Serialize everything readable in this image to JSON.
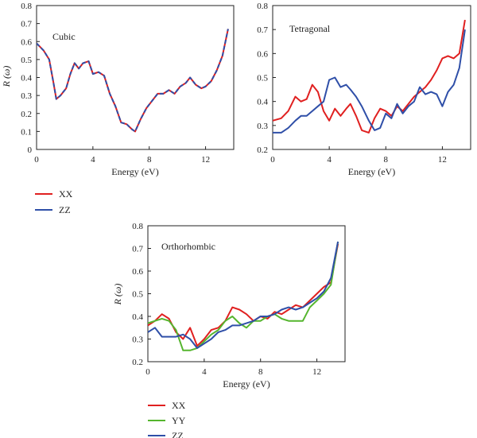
{
  "colors": {
    "XX": "#e02020",
    "YY": "#55b52e",
    "ZZ": "#2f4fa8",
    "axis": "#222222"
  },
  "chart_data": [
    {
      "type": "line",
      "panel_label": "Cubic",
      "xlabel": "Energy (eV)",
      "ylabel": "R (ω)",
      "xlim": [
        0,
        14
      ],
      "ylim": [
        0,
        0.8
      ],
      "xticks": [
        0,
        4,
        8,
        12
      ],
      "yticks": [
        0,
        0.1,
        0.2,
        0.3,
        0.4,
        0.5,
        0.6,
        0.7,
        0.8
      ],
      "legend": [
        "XX",
        "ZZ"
      ],
      "series": [
        {
          "name": "XX",
          "color": "#e02020",
          "dashed": false,
          "x": [
            0,
            0.5,
            0.9,
            1.2,
            1.4,
            1.7,
            2.1,
            2.4,
            2.7,
            3.0,
            3.3,
            3.7,
            4.0,
            4.4,
            4.8,
            5.2,
            5.6,
            6.0,
            6.4,
            6.8,
            7.0,
            7.4,
            7.8,
            8.2,
            8.6,
            9.0,
            9.4,
            9.8,
            10.2,
            10.6,
            10.9,
            11.3,
            11.7,
            12.0,
            12.4,
            12.8,
            13.2,
            13.6
          ],
          "y": [
            0.59,
            0.55,
            0.5,
            0.37,
            0.28,
            0.3,
            0.34,
            0.42,
            0.48,
            0.45,
            0.48,
            0.49,
            0.42,
            0.43,
            0.41,
            0.31,
            0.24,
            0.15,
            0.14,
            0.11,
            0.1,
            0.17,
            0.23,
            0.27,
            0.31,
            0.31,
            0.33,
            0.31,
            0.35,
            0.37,
            0.4,
            0.36,
            0.34,
            0.35,
            0.38,
            0.44,
            0.52,
            0.67
          ]
        },
        {
          "name": "ZZ",
          "color": "#2f4fa8",
          "dashed": true,
          "x": [
            0,
            0.5,
            0.9,
            1.2,
            1.4,
            1.7,
            2.1,
            2.4,
            2.7,
            3.0,
            3.3,
            3.7,
            4.0,
            4.4,
            4.8,
            5.2,
            5.6,
            6.0,
            6.4,
            6.8,
            7.0,
            7.4,
            7.8,
            8.2,
            8.6,
            9.0,
            9.4,
            9.8,
            10.2,
            10.6,
            10.9,
            11.3,
            11.7,
            12.0,
            12.4,
            12.8,
            13.2,
            13.6
          ],
          "y": [
            0.59,
            0.55,
            0.5,
            0.37,
            0.28,
            0.3,
            0.34,
            0.42,
            0.48,
            0.45,
            0.48,
            0.49,
            0.42,
            0.43,
            0.41,
            0.31,
            0.24,
            0.15,
            0.14,
            0.11,
            0.1,
            0.17,
            0.23,
            0.27,
            0.31,
            0.31,
            0.33,
            0.31,
            0.35,
            0.37,
            0.4,
            0.36,
            0.34,
            0.35,
            0.38,
            0.44,
            0.52,
            0.67
          ]
        }
      ]
    },
    {
      "type": "line",
      "panel_label": "Tetragonal",
      "xlabel": "Energy (eV)",
      "ylabel": "",
      "xlim": [
        0,
        14
      ],
      "ylim": [
        0.2,
        0.8
      ],
      "xticks": [
        0,
        4,
        8,
        12
      ],
      "yticks": [
        0.2,
        0.3,
        0.4,
        0.5,
        0.6,
        0.7,
        0.8
      ],
      "legend": [],
      "series": [
        {
          "name": "XX",
          "color": "#e02020",
          "dashed": false,
          "x": [
            0,
            0.6,
            1.1,
            1.6,
            2.0,
            2.4,
            2.8,
            3.2,
            3.6,
            4.0,
            4.4,
            4.8,
            5.2,
            5.5,
            5.9,
            6.3,
            6.8,
            7.2,
            7.6,
            8.0,
            8.4,
            8.8,
            9.2,
            9.6,
            10.0,
            10.4,
            10.8,
            11.2,
            11.6,
            12.0,
            12.4,
            12.8,
            13.2,
            13.6
          ],
          "y": [
            0.32,
            0.33,
            0.36,
            0.42,
            0.4,
            0.41,
            0.47,
            0.44,
            0.36,
            0.32,
            0.37,
            0.34,
            0.37,
            0.39,
            0.34,
            0.28,
            0.27,
            0.33,
            0.37,
            0.36,
            0.34,
            0.38,
            0.36,
            0.39,
            0.42,
            0.44,
            0.46,
            0.49,
            0.53,
            0.58,
            0.59,
            0.58,
            0.6,
            0.74
          ]
        },
        {
          "name": "ZZ",
          "color": "#2f4fa8",
          "dashed": false,
          "x": [
            0,
            0.6,
            1.1,
            1.6,
            2.0,
            2.4,
            2.8,
            3.2,
            3.6,
            4.0,
            4.4,
            4.8,
            5.2,
            5.5,
            5.9,
            6.3,
            6.8,
            7.2,
            7.6,
            8.0,
            8.4,
            8.8,
            9.2,
            9.6,
            10.0,
            10.4,
            10.8,
            11.2,
            11.6,
            12.0,
            12.4,
            12.8,
            13.2,
            13.6
          ],
          "y": [
            0.27,
            0.27,
            0.29,
            0.32,
            0.34,
            0.34,
            0.36,
            0.38,
            0.4,
            0.49,
            0.5,
            0.46,
            0.47,
            0.45,
            0.42,
            0.38,
            0.32,
            0.28,
            0.29,
            0.35,
            0.33,
            0.39,
            0.35,
            0.38,
            0.4,
            0.46,
            0.43,
            0.44,
            0.43,
            0.38,
            0.44,
            0.47,
            0.54,
            0.7
          ]
        }
      ]
    },
    {
      "type": "line",
      "panel_label": "Orthorhombic",
      "xlabel": "Energy (eV)",
      "ylabel": "R (ω)",
      "xlim": [
        0,
        14
      ],
      "ylim": [
        0.2,
        0.8
      ],
      "xticks": [
        0,
        4,
        8,
        12
      ],
      "yticks": [
        0.2,
        0.3,
        0.4,
        0.5,
        0.6,
        0.7,
        0.8
      ],
      "legend": [
        "XX",
        "YY",
        "ZZ"
      ],
      "series": [
        {
          "name": "XX",
          "color": "#e02020",
          "dashed": false,
          "x": [
            0,
            0.5,
            1.0,
            1.5,
            2.0,
            2.5,
            3.0,
            3.5,
            4.0,
            4.5,
            5.0,
            5.5,
            6.0,
            6.5,
            7.0,
            7.5,
            8.0,
            8.5,
            9.0,
            9.5,
            10.0,
            10.5,
            11.0,
            11.5,
            12.0,
            12.5,
            13.0,
            13.5
          ],
          "y": [
            0.36,
            0.38,
            0.41,
            0.39,
            0.33,
            0.3,
            0.35,
            0.27,
            0.3,
            0.34,
            0.35,
            0.38,
            0.44,
            0.43,
            0.41,
            0.38,
            0.4,
            0.39,
            0.42,
            0.41,
            0.43,
            0.45,
            0.44,
            0.47,
            0.5,
            0.53,
            0.55,
            0.72
          ]
        },
        {
          "name": "YY",
          "color": "#55b52e",
          "dashed": false,
          "x": [
            0,
            0.5,
            1.0,
            1.5,
            2.0,
            2.5,
            3.0,
            3.5,
            4.0,
            4.5,
            5.0,
            5.5,
            6.0,
            6.5,
            7.0,
            7.5,
            8.0,
            8.5,
            9.0,
            9.5,
            10.0,
            10.5,
            11.0,
            11.5,
            12.0,
            12.5,
            13.0,
            13.5
          ],
          "y": [
            0.37,
            0.38,
            0.39,
            0.38,
            0.34,
            0.25,
            0.25,
            0.26,
            0.29,
            0.32,
            0.34,
            0.38,
            0.4,
            0.37,
            0.35,
            0.38,
            0.38,
            0.4,
            0.41,
            0.39,
            0.38,
            0.38,
            0.38,
            0.44,
            0.47,
            0.5,
            0.54,
            0.73
          ]
        },
        {
          "name": "ZZ",
          "color": "#2f4fa8",
          "dashed": false,
          "x": [
            0,
            0.5,
            1.0,
            1.5,
            2.0,
            2.5,
            3.0,
            3.5,
            4.0,
            4.5,
            5.0,
            5.5,
            6.0,
            6.5,
            7.0,
            7.5,
            8.0,
            8.5,
            9.0,
            9.5,
            10.0,
            10.5,
            11.0,
            11.5,
            12.0,
            12.5,
            13.0,
            13.5
          ],
          "y": [
            0.33,
            0.35,
            0.31,
            0.31,
            0.31,
            0.32,
            0.3,
            0.26,
            0.28,
            0.3,
            0.33,
            0.34,
            0.36,
            0.36,
            0.37,
            0.38,
            0.4,
            0.4,
            0.41,
            0.43,
            0.44,
            0.43,
            0.44,
            0.46,
            0.48,
            0.51,
            0.57,
            0.73
          ]
        }
      ]
    }
  ]
}
